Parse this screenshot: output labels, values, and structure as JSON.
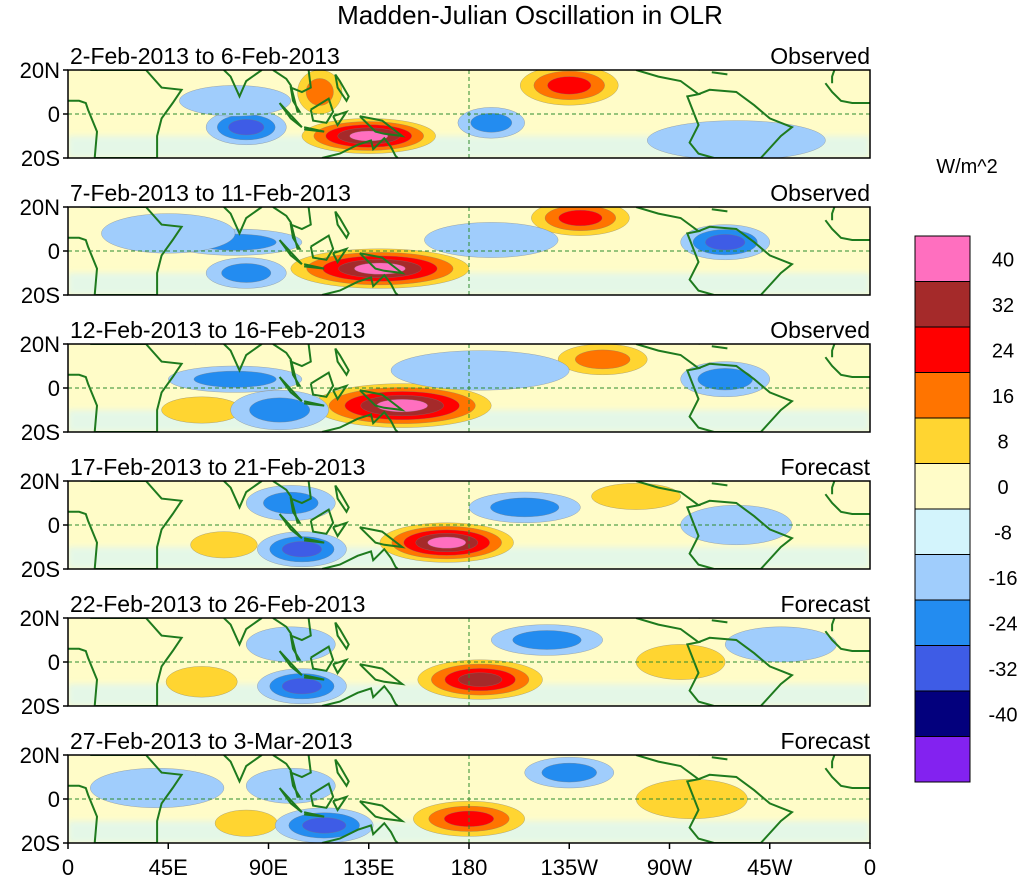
{
  "chart_data": {
    "type": "heatmap",
    "title": "Madden-Julian Oscillation in OLR",
    "colorbar_units": "W/m^2",
    "colorbar_ticks": [
      "40",
      "32",
      "24",
      "16",
      "8",
      "0",
      "-8",
      "-16",
      "-24",
      "-32",
      "-40"
    ],
    "colorbar_colors": [
      "#ff6fbf",
      "#a52a2a",
      "#ff0000",
      "#ff7400",
      "#ffd531",
      "#fffcc8",
      "#d3f4fc",
      "#a0cdfc",
      "#238cf0",
      "#3e5ce6",
      "#03007d",
      "#8322f0"
    ],
    "y_tick_labels": [
      "20N",
      "0",
      "20S"
    ],
    "x_tick_labels": [
      "0",
      "45E",
      "90E",
      "135E",
      "180",
      "135W",
      "90W",
      "45W",
      "0"
    ],
    "x_tick_lons": [
      0,
      45,
      90,
      135,
      180,
      225,
      270,
      315,
      360
    ],
    "lon_range": [
      0,
      360
    ],
    "lat_range": [
      -20,
      20
    ],
    "panels": [
      {
        "period": "2-Feb-2013 to 6-Feb-2013",
        "status": "Observed",
        "anomalies": [
          {
            "lon": 135,
            "lat": -10,
            "lon_w": 30,
            "lat_h": 8,
            "value": 40
          },
          {
            "lon": 225,
            "lat": 13,
            "lon_w": 22,
            "lat_h": 9,
            "value": 24
          },
          {
            "lon": 113,
            "lat": 10,
            "lon_w": 10,
            "lat_h": 10,
            "value": 16
          },
          {
            "lon": 80,
            "lat": -6,
            "lon_w": 18,
            "lat_h": 8,
            "value": -24
          },
          {
            "lon": 190,
            "lat": -4,
            "lon_w": 15,
            "lat_h": 7,
            "value": -16
          },
          {
            "lon": 75,
            "lat": 6,
            "lon_w": 25,
            "lat_h": 7,
            "value": -8
          },
          {
            "lon": 300,
            "lat": -12,
            "lon_w": 40,
            "lat_h": 9,
            "value": -8
          }
        ]
      },
      {
        "period": "7-Feb-2013 to 11-Feb-2013",
        "status": "Observed",
        "anomalies": [
          {
            "lon": 140,
            "lat": -8,
            "lon_w": 40,
            "lat_h": 9,
            "value": 40
          },
          {
            "lon": 230,
            "lat": 15,
            "lon_w": 22,
            "lat_h": 8,
            "value": 24
          },
          {
            "lon": 80,
            "lat": -10,
            "lon_w": 18,
            "lat_h": 7,
            "value": -16
          },
          {
            "lon": 75,
            "lat": 4,
            "lon_w": 30,
            "lat_h": 6,
            "value": -16
          },
          {
            "lon": 295,
            "lat": 4,
            "lon_w": 20,
            "lat_h": 8,
            "value": -24
          },
          {
            "lon": 190,
            "lat": 5,
            "lon_w": 30,
            "lat_h": 8,
            "value": -8
          },
          {
            "lon": 45,
            "lat": 8,
            "lon_w": 30,
            "lat_h": 9,
            "value": -8
          }
        ]
      },
      {
        "period": "12-Feb-2013 to 16-Feb-2013",
        "status": "Observed",
        "anomalies": [
          {
            "lon": 150,
            "lat": -8,
            "lon_w": 40,
            "lat_h": 10,
            "value": 40
          },
          {
            "lon": 240,
            "lat": 13,
            "lon_w": 20,
            "lat_h": 7,
            "value": 16
          },
          {
            "lon": 60,
            "lat": -10,
            "lon_w": 18,
            "lat_h": 6,
            "value": 8
          },
          {
            "lon": 75,
            "lat": 4,
            "lon_w": 30,
            "lat_h": 6,
            "value": -16
          },
          {
            "lon": 95,
            "lat": -10,
            "lon_w": 22,
            "lat_h": 9,
            "value": -16
          },
          {
            "lon": 295,
            "lat": 4,
            "lon_w": 20,
            "lat_h": 8,
            "value": -16
          },
          {
            "lon": 185,
            "lat": 8,
            "lon_w": 40,
            "lat_h": 9,
            "value": -8
          }
        ]
      },
      {
        "period": "17-Feb-2013 to 21-Feb-2013",
        "status": "Forecast",
        "anomalies": [
          {
            "lon": 170,
            "lat": -8,
            "lon_w": 30,
            "lat_h": 9,
            "value": 40
          },
          {
            "lon": 70,
            "lat": -9,
            "lon_w": 15,
            "lat_h": 6,
            "value": 8
          },
          {
            "lon": 255,
            "lat": 13,
            "lon_w": 20,
            "lat_h": 6,
            "value": 8
          },
          {
            "lon": 105,
            "lat": -11,
            "lon_w": 20,
            "lat_h": 8,
            "value": -24
          },
          {
            "lon": 205,
            "lat": 8,
            "lon_w": 25,
            "lat_h": 7,
            "value": -16
          },
          {
            "lon": 100,
            "lat": 10,
            "lon_w": 20,
            "lat_h": 8,
            "value": -16
          },
          {
            "lon": 300,
            "lat": 0,
            "lon_w": 25,
            "lat_h": 9,
            "value": -8
          }
        ]
      },
      {
        "period": "22-Feb-2013 to 26-Feb-2013",
        "status": "Forecast",
        "anomalies": [
          {
            "lon": 185,
            "lat": -8,
            "lon_w": 28,
            "lat_h": 9,
            "value": 32
          },
          {
            "lon": 60,
            "lat": -9,
            "lon_w": 16,
            "lat_h": 7,
            "value": 8
          },
          {
            "lon": 275,
            "lat": 0,
            "lon_w": 20,
            "lat_h": 8,
            "value": 8
          },
          {
            "lon": 105,
            "lat": -11,
            "lon_w": 20,
            "lat_h": 8,
            "value": -24
          },
          {
            "lon": 215,
            "lat": 10,
            "lon_w": 25,
            "lat_h": 7,
            "value": -16
          },
          {
            "lon": 100,
            "lat": 8,
            "lon_w": 20,
            "lat_h": 8,
            "value": -8
          },
          {
            "lon": 320,
            "lat": 8,
            "lon_w": 25,
            "lat_h": 8,
            "value": -8
          }
        ]
      },
      {
        "period": "27-Feb-2013 to 3-Mar-2013",
        "status": "Forecast",
        "anomalies": [
          {
            "lon": 180,
            "lat": -9,
            "lon_w": 25,
            "lat_h": 8,
            "value": 24
          },
          {
            "lon": 80,
            "lat": -11,
            "lon_w": 14,
            "lat_h": 6,
            "value": 8
          },
          {
            "lon": 280,
            "lat": 0,
            "lon_w": 25,
            "lat_h": 9,
            "value": 8
          },
          {
            "lon": 115,
            "lat": -12,
            "lon_w": 22,
            "lat_h": 8,
            "value": -24
          },
          {
            "lon": 225,
            "lat": 12,
            "lon_w": 20,
            "lat_h": 7,
            "value": -16
          },
          {
            "lon": 100,
            "lat": 6,
            "lon_w": 20,
            "lat_h": 8,
            "value": -8
          },
          {
            "lon": 40,
            "lat": 5,
            "lon_w": 30,
            "lat_h": 9,
            "value": -8
          }
        ]
      }
    ]
  }
}
